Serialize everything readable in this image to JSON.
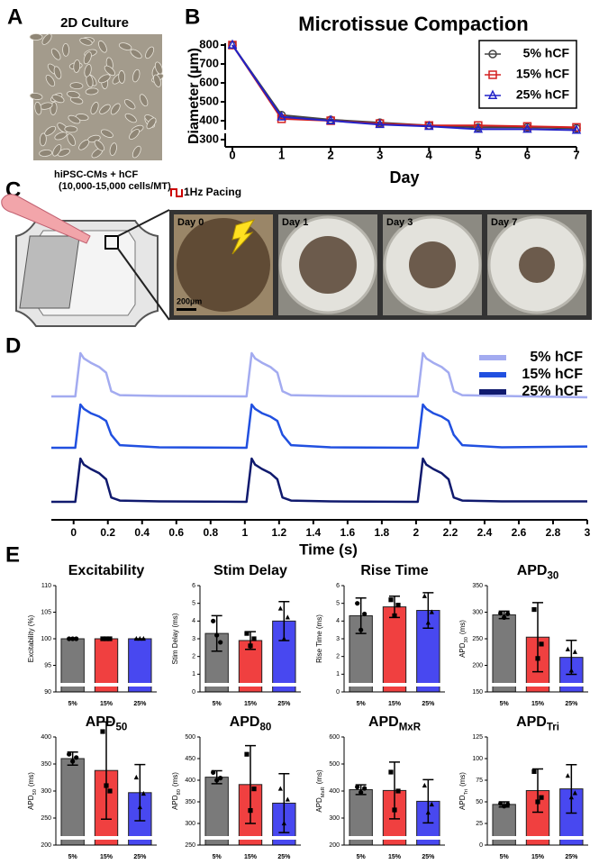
{
  "labels": {
    "a": "A",
    "b": "B",
    "c": "C",
    "d": "D",
    "e": "E"
  },
  "culture": {
    "title": "2D Culture"
  },
  "device": {
    "cells": "hiPSC-CMs + hCF",
    "count": "(10,000-15,000 cells/MT)",
    "pacing": "1Hz Pacing"
  },
  "microscopy": {
    "days": [
      "Day 0",
      "Day 1",
      "Day 3",
      "Day 7"
    ],
    "scale_bar": "200µm"
  },
  "chart_data": [
    {
      "type": "line",
      "title": "Microtissue Compaction",
      "x_label": "Day",
      "y_label": "Diameter (µm)",
      "x": [
        0,
        1,
        2,
        3,
        4,
        5,
        6,
        7
      ],
      "xlim": [
        0,
        7
      ],
      "xticks": [
        0,
        1,
        2,
        3,
        4,
        5,
        6,
        7
      ],
      "ylim": [
        300,
        800
      ],
      "yticks": [
        300,
        400,
        500,
        600,
        700,
        800
      ],
      "legend": "upper right",
      "series": [
        {
          "name": "5% hCF",
          "color": "#444444",
          "marker": "circle",
          "values": [
            800,
            430,
            405,
            390,
            375,
            365,
            365,
            360
          ]
        },
        {
          "name": "15% hCF",
          "color": "#d42020",
          "marker": "square",
          "values": [
            800,
            410,
            400,
            385,
            375,
            375,
            370,
            365
          ]
        },
        {
          "name": "25% hCF",
          "color": "#2222c8",
          "marker": "triangle",
          "values": [
            800,
            420,
            400,
            380,
            370,
            355,
            355,
            350
          ]
        }
      ]
    },
    {
      "type": "line",
      "x_label": "Time (s)",
      "x": [
        -0.13,
        0.01,
        0.04,
        0.06,
        0.1,
        0.15,
        0.19,
        0.22,
        0.27,
        0.5,
        1.01,
        1.04,
        1.06,
        1.1,
        1.15,
        1.19,
        1.22,
        1.27,
        1.5,
        2.01,
        2.04,
        2.06,
        2.1,
        2.15,
        2.19,
        2.22,
        2.27,
        2.5,
        3
      ],
      "xlim": [
        -0.13,
        3
      ],
      "xticks": [
        0,
        0.2,
        0.4,
        0.6,
        0.8,
        1,
        1.2,
        1.4,
        1.6,
        1.8,
        2,
        2.2,
        2.4,
        2.6,
        2.8,
        3
      ],
      "legend": "upper right",
      "series": [
        {
          "name": "5% hCF",
          "color": "#a3abf0",
          "values": [
            0,
            0,
            1,
            0.88,
            0.78,
            0.68,
            0.55,
            0.12,
            0.03,
            0.01,
            0,
            1,
            0.88,
            0.78,
            0.68,
            0.55,
            0.12,
            0.03,
            0.01,
            0,
            1,
            0.88,
            0.78,
            0.68,
            0.55,
            0.12,
            0.03,
            0.01,
            -0.02
          ]
        },
        {
          "name": "15% hCF",
          "color": "#2150e0",
          "values": [
            0,
            0,
            1,
            0.9,
            0.8,
            0.72,
            0.62,
            0.3,
            0.06,
            0.01,
            0,
            1,
            0.9,
            0.8,
            0.72,
            0.62,
            0.3,
            0.06,
            0.01,
            0,
            1,
            0.9,
            0.8,
            0.72,
            0.62,
            0.3,
            0.06,
            0.01,
            0.03
          ]
        },
        {
          "name": "25% hCF",
          "color": "#101a6e",
          "values": [
            0,
            0,
            1,
            0.86,
            0.76,
            0.66,
            0.52,
            0.1,
            0.03,
            0.01,
            0,
            1,
            0.86,
            0.76,
            0.66,
            0.52,
            0.1,
            0.03,
            0.01,
            0,
            1,
            0.86,
            0.76,
            0.66,
            0.52,
            0.1,
            0.03,
            0.01,
            0.01
          ]
        }
      ]
    },
    {
      "type": "bar",
      "title": "Excitability",
      "y_label": "Excitability (%)",
      "categories": [
        "5%",
        "15%",
        "25%"
      ],
      "colors": [
        "#7a7a7a",
        "#f04040",
        "#4848f0"
      ],
      "markers": [
        "circle",
        "square",
        "triangle"
      ],
      "values": [
        100,
        100,
        100
      ],
      "errors": [
        0,
        0,
        0
      ],
      "points": [
        [
          100,
          100,
          100
        ],
        [
          100,
          100,
          100
        ],
        [
          100,
          100,
          100
        ]
      ],
      "ylim": [
        90,
        110
      ],
      "yticks": [
        90,
        95,
        100,
        105,
        110
      ]
    },
    {
      "type": "bar",
      "title": "Stim Delay",
      "y_label": "Stim Delay (ms)",
      "categories": [
        "5%",
        "15%",
        "25%"
      ],
      "colors": [
        "#7a7a7a",
        "#f04040",
        "#4848f0"
      ],
      "markers": [
        "circle",
        "square",
        "triangle"
      ],
      "values": [
        3.3,
        2.9,
        4.0
      ],
      "errors": [
        1.0,
        0.5,
        1.1
      ],
      "points": [
        [
          4.0,
          3.2,
          2.8
        ],
        [
          3.3,
          2.6,
          3.0
        ],
        [
          4.7,
          3.0,
          4.2
        ]
      ],
      "ylim": [
        0,
        6
      ],
      "yticks": [
        0,
        1,
        2,
        3,
        4,
        5,
        6
      ]
    },
    {
      "type": "bar",
      "title": "Rise Time",
      "y_label": "Rise Time (ms)",
      "categories": [
        "5%",
        "15%",
        "25%"
      ],
      "colors": [
        "#7a7a7a",
        "#f04040",
        "#4848f0"
      ],
      "markers": [
        "circle",
        "square",
        "triangle"
      ],
      "values": [
        4.3,
        4.8,
        4.6
      ],
      "errors": [
        1.0,
        0.6,
        1.0
      ],
      "points": [
        [
          5.0,
          3.5,
          4.4
        ],
        [
          5.2,
          4.3,
          4.9
        ],
        [
          5.4,
          3.9,
          4.5
        ]
      ],
      "ylim": [
        0,
        6
      ],
      "yticks": [
        0,
        1,
        2,
        3,
        4,
        5,
        6
      ]
    },
    {
      "type": "bar",
      "title": "APD",
      "title_subscript": "30",
      "y_label": "APD",
      "y_label_subscript": "30",
      "y_label_unit": "(ms)",
      "categories": [
        "5%",
        "15%",
        "25%"
      ],
      "colors": [
        "#7a7a7a",
        "#f04040",
        "#4848f0"
      ],
      "markers": [
        "circle",
        "square",
        "triangle"
      ],
      "values": [
        295,
        253,
        215
      ],
      "errors": [
        7,
        65,
        32
      ],
      "points": [
        [
          298,
          290,
          297
        ],
        [
          305,
          213,
          240
        ],
        [
          230,
          190,
          225
        ]
      ],
      "ylim": [
        150,
        350
      ],
      "yticks": [
        150,
        200,
        250,
        300,
        350
      ]
    },
    {
      "type": "bar",
      "title": "APD",
      "title_subscript": "50",
      "y_label": "APD",
      "y_label_subscript": "50",
      "y_label_unit": "(ms)",
      "categories": [
        "5%",
        "15%",
        "25%"
      ],
      "colors": [
        "#7a7a7a",
        "#f04040",
        "#4848f0"
      ],
      "markers": [
        "circle",
        "square",
        "triangle"
      ],
      "values": [
        360,
        338,
        297
      ],
      "errors": [
        12,
        90,
        52
      ],
      "points": [
        [
          368,
          355,
          362
        ],
        [
          410,
          310,
          300
        ],
        [
          325,
          270,
          295
        ]
      ],
      "ylim": [
        200,
        400
      ],
      "yticks": [
        200,
        250,
        300,
        350,
        400
      ]
    },
    {
      "type": "bar",
      "title": "APD",
      "title_subscript": "80",
      "y_label": "APD",
      "y_label_subscript": "80",
      "y_label_unit": "(ms)",
      "categories": [
        "5%",
        "15%",
        "25%"
      ],
      "colors": [
        "#7a7a7a",
        "#f04040",
        "#4848f0"
      ],
      "markers": [
        "circle",
        "square",
        "triangle"
      ],
      "values": [
        407,
        390,
        347
      ],
      "errors": [
        15,
        90,
        68
      ],
      "points": [
        [
          418,
          400,
          405
        ],
        [
          460,
          330,
          380
        ],
        [
          380,
          300,
          355
        ]
      ],
      "ylim": [
        250,
        500
      ],
      "yticks": [
        250,
        300,
        350,
        400,
        450,
        500
      ]
    },
    {
      "type": "bar",
      "title": "APD",
      "title_subscript": "MxR",
      "y_label": "APD",
      "y_label_subscript": "MxR",
      "y_label_unit": "(ms)",
      "categories": [
        "5%",
        "15%",
        "25%"
      ],
      "colors": [
        "#7a7a7a",
        "#f04040",
        "#4848f0"
      ],
      "markers": [
        "circle",
        "square",
        "triangle"
      ],
      "values": [
        405,
        402,
        362
      ],
      "errors": [
        18,
        105,
        80
      ],
      "points": [
        [
          415,
          395,
          410
        ],
        [
          470,
          330,
          400
        ],
        [
          420,
          320,
          350
        ]
      ],
      "ylim": [
        200,
        600
      ],
      "yticks": [
        200,
        300,
        400,
        500,
        600
      ]
    },
    {
      "type": "bar",
      "title": "APD",
      "title_subscript": "Tri",
      "y_label": "APD",
      "y_label_subscript": "Tri",
      "y_label_unit": "(ms)",
      "categories": [
        "5%",
        "15%",
        "25%"
      ],
      "colors": [
        "#7a7a7a",
        "#f04040",
        "#4848f0"
      ],
      "markers": [
        "circle",
        "square",
        "triangle"
      ],
      "values": [
        47,
        63,
        65
      ],
      "errors": [
        3,
        25,
        28
      ],
      "points": [
        [
          48,
          45,
          47
        ],
        [
          85,
          50,
          55
        ],
        [
          80,
          55,
          60
        ]
      ],
      "ylim": [
        0,
        125
      ],
      "yticks": [
        0,
        25,
        50,
        75,
        100,
        125
      ]
    }
  ]
}
